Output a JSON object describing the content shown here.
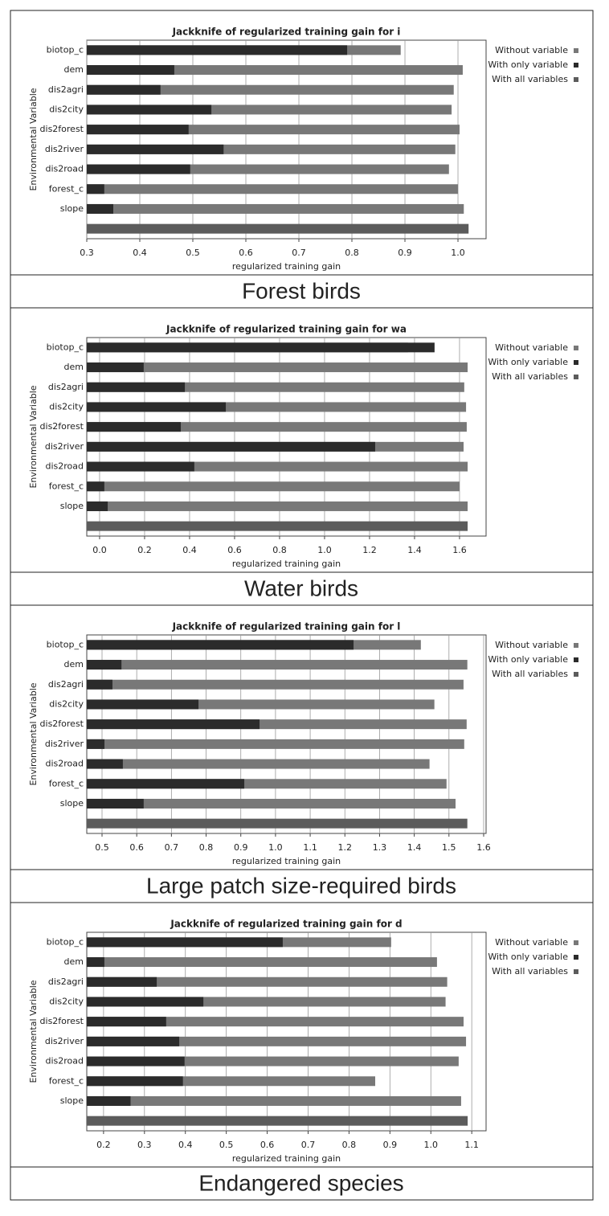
{
  "chart_data": [
    {
      "type": "bar",
      "title": "Jackknife of regularized training gain for i",
      "xlabel": "regularized training gain",
      "ylabel": "Environmental Variable",
      "caption": "Forest birds",
      "categories": [
        "biotop_c",
        "dem",
        "dis2agri",
        "dis2city",
        "dis2forest",
        "dis2river",
        "dis2road",
        "forest_c",
        "slope",
        null
      ],
      "series": [
        {
          "name": "Without variable",
          "color": "#787878",
          "values": [
            0.892,
            1.009,
            0.992,
            0.988,
            1.003,
            0.995,
            0.983,
            1.0,
            1.011,
            null
          ]
        },
        {
          "name": "With only variable",
          "color": "#2b2b2b",
          "values": [
            0.791,
            0.465,
            0.439,
            0.535,
            0.492,
            0.558,
            0.495,
            0.333,
            0.35,
            null
          ]
        },
        {
          "name": "With all variables",
          "color": "#5c5c5c",
          "values": [
            null,
            null,
            null,
            null,
            null,
            null,
            null,
            null,
            null,
            1.02
          ]
        }
      ],
      "xlim": [
        0.3,
        1.053
      ],
      "xticks": [
        0.3,
        0.4,
        0.5,
        0.6,
        0.7,
        0.8,
        0.9,
        {
          "value": 1,
          "label": "1.0"
        }
      ],
      "grid": true,
      "legend": "right"
    },
    {
      "type": "bar",
      "title": "Jackknife of regularized training gain for wa",
      "xlabel": "regularized training gain",
      "ylabel": "Environmental Variable",
      "caption": "Water birds",
      "categories": [
        "biotop_c",
        "dem",
        "dis2agri",
        "dis2city",
        "dis2forest",
        "dis2river",
        "dis2road",
        "forest_c",
        "slope",
        null
      ],
      "series": [
        {
          "name": "Without variable",
          "color": "#787878",
          "values": [
            1.371,
            1.636,
            1.621,
            1.629,
            1.632,
            1.618,
            1.636,
            1.6,
            1.636,
            null
          ]
        },
        {
          "name": "With only variable",
          "color": "#2b2b2b",
          "values": [
            1.489,
            0.196,
            0.379,
            0.561,
            0.361,
            1.225,
            0.421,
            0.021,
            0.036,
            null
          ]
        },
        {
          "name": "With all variables",
          "color": "#5c5c5c",
          "values": [
            null,
            null,
            null,
            null,
            null,
            null,
            null,
            null,
            null,
            1.636
          ]
        }
      ],
      "xlim": [
        -0.057,
        1.718
      ],
      "xticks": [
        {
          "value": 0,
          "label": "0.0"
        },
        0.2,
        0.4,
        0.6,
        0.8,
        {
          "value": 1,
          "label": "1.0"
        },
        1.2,
        1.4,
        1.6
      ],
      "grid": true,
      "legend": "right"
    },
    {
      "type": "bar",
      "title": "Jackknife of regularized training gain for l",
      "xlabel": "regularized training gain",
      "ylabel": "Environmental Variable",
      "caption": "Large  patch size-required  birds",
      "categories": [
        "biotop_c",
        "dem",
        "dis2agri",
        "dis2city",
        "dis2forest",
        "dis2river",
        "dis2road",
        "forest_c",
        "slope",
        null
      ],
      "series": [
        {
          "name": "Without variable",
          "color": "#787878",
          "values": [
            1.419,
            1.553,
            1.542,
            1.458,
            1.551,
            1.544,
            1.444,
            1.493,
            1.519,
            null
          ]
        },
        {
          "name": "With only variable",
          "color": "#2b2b2b",
          "values": [
            1.225,
            0.556,
            0.53,
            0.778,
            0.954,
            0.507,
            0.56,
            0.91,
            0.62,
            null
          ]
        },
        {
          "name": "With all variables",
          "color": "#5c5c5c",
          "values": [
            null,
            null,
            null,
            null,
            null,
            null,
            null,
            null,
            null,
            1.553
          ]
        }
      ],
      "xlim": [
        0.456,
        1.607
      ],
      "xticks": [
        0.5,
        0.6,
        0.7,
        0.8,
        0.9,
        {
          "value": 1,
          "label": "1.0"
        },
        1.1,
        1.2,
        1.3,
        1.4,
        1.5,
        1.6
      ],
      "grid": true,
      "legend": "right"
    },
    {
      "type": "bar",
      "title": "Jackknife of regularized training gain for d",
      "xlabel": "regularized training gain",
      "ylabel": "Environmental Variable",
      "caption": "Endangered  species",
      "categories": [
        "biotop_c",
        "dem",
        "dis2agri",
        "dis2city",
        "dis2forest",
        "dis2river",
        "dis2road",
        "forest_c",
        "slope",
        null
      ],
      "series": [
        {
          "name": "Without variable",
          "color": "#787878",
          "values": [
            0.903,
            1.015,
            1.04,
            1.036,
            1.08,
            1.086,
            1.068,
            0.864,
            1.074,
            null
          ]
        },
        {
          "name": "With only variable",
          "color": "#2b2b2b",
          "values": [
            0.638,
            0.202,
            0.33,
            0.444,
            0.353,
            0.385,
            0.398,
            0.394,
            0.266,
            null
          ]
        },
        {
          "name": "With all variables",
          "color": "#5c5c5c",
          "values": [
            null,
            null,
            null,
            null,
            null,
            null,
            null,
            null,
            null,
            1.09
          ]
        }
      ],
      "xlim": [
        0.159,
        1.135
      ],
      "xticks": [
        0.2,
        0.3,
        0.4,
        0.5,
        0.6,
        0.7,
        0.8,
        0.9,
        {
          "value": 1,
          "label": "1.0"
        },
        1.1
      ],
      "grid": true,
      "legend": "right"
    }
  ]
}
